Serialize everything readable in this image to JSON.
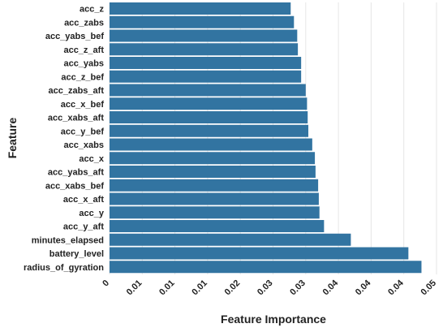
{
  "chart_data": {
    "type": "bar",
    "orientation": "horizontal",
    "xlabel": "Feature Importance",
    "ylabel": "Feature",
    "xlim": [
      0,
      0.05
    ],
    "xticks": [
      0,
      0.005,
      0.01,
      0.015,
      0.02,
      0.025,
      0.03,
      0.035,
      0.04,
      0.045,
      0.05
    ],
    "xtick_labels": [
      "0",
      "0.01",
      "0.01",
      "0.01",
      "0.02",
      "0.03",
      "0.03",
      "0.04",
      "0.04",
      "0.04",
      "0.05"
    ],
    "grid": "vertical",
    "bar_color": "#3274a1",
    "categories": [
      "acc_z",
      "acc_zabs",
      "acc_yabs_bef",
      "acc_z_aft",
      "acc_yabs",
      "acc_z_bef",
      "acc_zabs_aft",
      "acc_x_bef",
      "acc_xabs_aft",
      "acc_y_bef",
      "acc_xabs",
      "acc_x",
      "acc_yabs_aft",
      "acc_xabs_bef",
      "acc_x_aft",
      "acc_y",
      "acc_y_aft",
      "minutes_elapsed",
      "battery_level",
      "radius_of_gyration"
    ],
    "values": [
      0.0277,
      0.0282,
      0.0287,
      0.0288,
      0.0293,
      0.0293,
      0.03,
      0.0302,
      0.0303,
      0.0304,
      0.031,
      0.0314,
      0.0315,
      0.0319,
      0.032,
      0.0321,
      0.0328,
      0.0369,
      0.0457,
      0.0477
    ]
  }
}
